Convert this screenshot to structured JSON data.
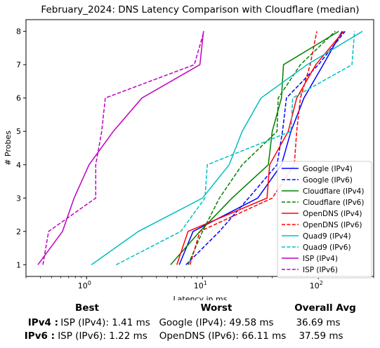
{
  "chart_data": {
    "type": "line",
    "title": "February_2024: DNS Latency Comparison with Cloudflare (median)",
    "xlabel": "Latency in ms",
    "ylabel": "# Probes",
    "xscale": "log",
    "xlim": [
      0.3,
      300
    ],
    "ylim": [
      0.65,
      8.35
    ],
    "x_ticks": [
      {
        "value": 1,
        "label": "10^0"
      },
      {
        "value": 10,
        "label": "10^1"
      },
      {
        "value": 100,
        "label": "10^2"
      }
    ],
    "y_ticks": [
      1,
      2,
      3,
      4,
      5,
      6,
      7,
      8
    ],
    "legend_position": "lower-right",
    "grid": false,
    "series": [
      {
        "name": "Google (IPv4)",
        "color": "#0000ff",
        "dash": "solid",
        "x": [
          6.3,
          8.3,
          30.0,
          48.0,
          58.0,
          75.0,
          110.0,
          160.0
        ],
        "y": [
          1,
          2,
          3,
          4,
          5,
          6,
          7,
          8
        ]
      },
      {
        "name": "Google (IPv6)",
        "color": "#0000ff",
        "dash": "dashed",
        "x": [
          7.2,
          14.0,
          25.0,
          44.0,
          49.0,
          53.0,
          100.0,
          170.0
        ],
        "y": [
          1,
          2,
          3,
          4,
          5,
          6,
          7,
          8
        ]
      },
      {
        "name": "Cloudflare (IPv4)",
        "color": "#008000",
        "dash": "solid",
        "x": [
          5.3,
          9.5,
          18.0,
          37.0,
          40.0,
          48.0,
          50.0,
          150.0
        ],
        "y": [
          1,
          2,
          3,
          4,
          5,
          6,
          7,
          8
        ]
      },
      {
        "name": "Cloudflare (IPv6)",
        "color": "#008000",
        "dash": "dashed",
        "x": [
          7.5,
          10.0,
          14.0,
          22.0,
          44.0,
          45.0,
          70.0,
          140.0
        ],
        "y": [
          1,
          2,
          3,
          4,
          5,
          6,
          7,
          8
        ]
      },
      {
        "name": "OpenDNS (IPv4)",
        "color": "#ff0000",
        "dash": "solid",
        "x": [
          6.0,
          7.5,
          36.0,
          38.0,
          55.0,
          65.0,
          95.0,
          165.0
        ],
        "y": [
          1,
          2,
          3,
          4,
          5,
          6,
          7,
          8
        ]
      },
      {
        "name": "OpenDNS (IPv6)",
        "color": "#ff0000",
        "dash": "dashed",
        "x": [
          7.8,
          9.5,
          40.0,
          62.0,
          65.0,
          70.0,
          85.0,
          97.0
        ],
        "y": [
          1,
          2,
          3,
          4,
          5,
          6,
          7,
          8
        ]
      },
      {
        "name": "Quad9 (IPv4)",
        "color": "#00bfbf",
        "dash": "solid",
        "x": [
          1.1,
          2.8,
          10.0,
          17.0,
          22.0,
          32.0,
          80.0,
          240.0
        ],
        "y": [
          1,
          2,
          3,
          4,
          5,
          6,
          7,
          8
        ]
      },
      {
        "name": "Quad9 (IPv6)",
        "color": "#00bfbf",
        "dash": "dashed",
        "x": [
          1.8,
          6.5,
          10.5,
          11.0,
          58.0,
          60.0,
          195.0,
          205.0
        ],
        "y": [
          1,
          2,
          3,
          4,
          5,
          6,
          7,
          8
        ]
      },
      {
        "name": "ISP (IPv4)",
        "color": "#bf00bf",
        "dash": "solid",
        "x": [
          0.38,
          0.62,
          0.78,
          1.05,
          1.7,
          3.0,
          9.5,
          10.2
        ],
        "y": [
          1,
          2,
          3,
          4,
          5,
          6,
          7,
          8
        ]
      },
      {
        "name": "ISP (IPv6)",
        "color": "#bf00bf",
        "dash": "dashed",
        "x": [
          0.42,
          0.47,
          1.2,
          1.2,
          1.35,
          1.45,
          8.5,
          10.3
        ],
        "y": [
          1,
          2,
          3,
          4,
          5,
          6,
          7,
          8
        ]
      }
    ]
  },
  "summary": {
    "headers": {
      "best": "Best",
      "worst": "Worst",
      "overall": "Overall Avg"
    },
    "rows": [
      {
        "label": "IPv4 :",
        "best": "ISP (IPv4): 1.41 ms",
        "worst": "Google (IPv4): 49.58 ms",
        "overall": "36.69 ms"
      },
      {
        "label": "IPv6 :",
        "best": "ISP (IPv6): 1.22 ms",
        "worst": "OpenDNS (IPv6): 66.11 ms",
        "overall": "37.59 ms"
      }
    ]
  }
}
